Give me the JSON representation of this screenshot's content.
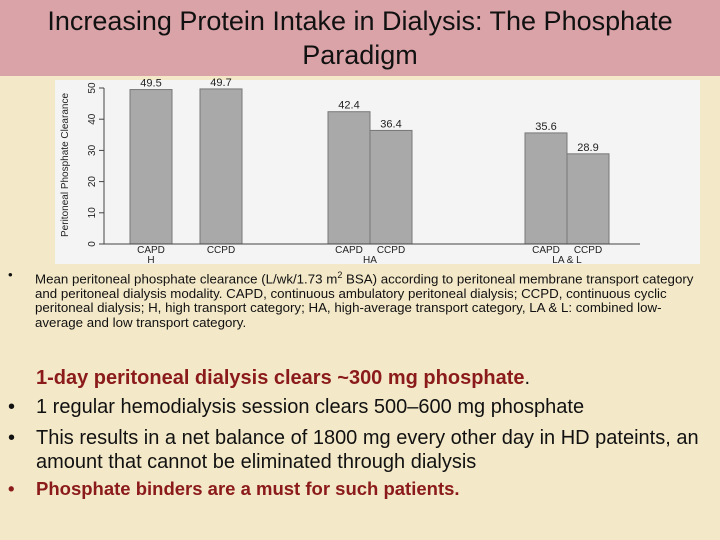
{
  "title": "Increasing Protein Intake in Dialysis: The Phosphate Paradigm",
  "chart_data": {
    "type": "bar",
    "ylabel": "Peritoneal Phosphate Clearance",
    "categories": [
      "CAPD",
      "CCPD",
      "CAPD",
      "CCPD",
      "CAPD",
      "CCPD"
    ],
    "groups": [
      "H",
      "HA",
      "LA & L"
    ],
    "values": [
      49.5,
      49.7,
      42.4,
      36.4,
      35.6,
      28.9
    ],
    "color": "#a9a9a9",
    "ylim": [
      0,
      50
    ],
    "yticks": [
      0,
      10,
      20,
      30,
      40,
      50
    ]
  },
  "caption": {
    "before": "Mean peritoneal phosphate clearance (L/wk/1.73 m",
    "sup": "2",
    "after": " BSA) according to peritoneal membrane transport category and peritoneal dialysis modality. CAPD, continuous ambulatory peritoneal dialysis; CCPD, continuous cyclic peritoneal dialysis; H, high transport category; HA, high-average transport category, LA & L: combined low-average and low transport category."
  },
  "bullets": {
    "first": "1-day peritoneal dialysis clears ~300 mg phosphate",
    "first_end": ".",
    "second": "1 regular hemodialysis session clears 500–600 mg phosphate",
    "third": "This results in a net balance of 1800 mg every other day in HD pateints, an amount that cannot be eliminated through dialysis",
    "fourth": "Phosphate binders are a must for such patients."
  }
}
